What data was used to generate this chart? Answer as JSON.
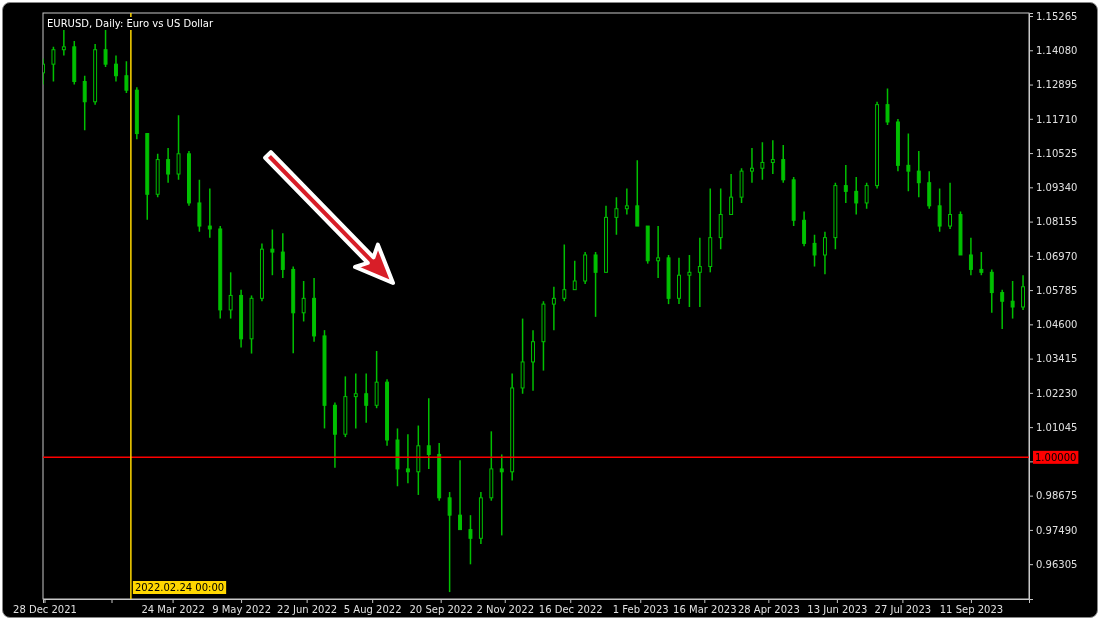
{
  "chart_data": {
    "type": "candlestick",
    "title": "EURUSD, Daily:  Euro vs US Dollar",
    "color": "#00c000",
    "xlim": [
      "2021-12-27",
      "2023-10-20"
    ],
    "xticks": [
      {
        "value": "2021-12-28",
        "label": "28 Dec 2021"
      },
      {
        "value": "2022-02-11",
        "label": null
      },
      {
        "value": "2022-03-24",
        "label": "24 Mar 2022"
      },
      {
        "value": "2022-05-09",
        "label": "9 May 2022"
      },
      {
        "value": "2022-06-22",
        "label": "22 Jun 2022"
      },
      {
        "value": "2022-08-05",
        "label": "5 Aug 2022"
      },
      {
        "value": "2022-09-20",
        "label": "20 Sep 2022"
      },
      {
        "value": "2022-11-02",
        "label": "2 Nov 2022"
      },
      {
        "value": "2022-12-16",
        "label": "16 Dec 2022"
      },
      {
        "value": "2023-02-01",
        "label": "1 Feb 2023"
      },
      {
        "value": "2023-03-16",
        "label": "16 Mar 2023"
      },
      {
        "value": "2023-04-28",
        "label": "28 Apr 2023"
      },
      {
        "value": "2023-06-13",
        "label": "13 Jun 2023"
      },
      {
        "value": "2023-07-27",
        "label": "27 Jul 2023"
      },
      {
        "value": "2023-09-11",
        "label": "11 Sep 2023"
      }
    ],
    "ylim": [
      0.951,
      1.1537
    ],
    "yticks": [
      {
        "value": 1.15265,
        "label": "1.15265"
      },
      {
        "value": 1.1408,
        "label": "1.14080"
      },
      {
        "value": 1.12895,
        "label": "1.12895"
      },
      {
        "value": 1.1171,
        "label": "1.11710"
      },
      {
        "value": 1.10525,
        "label": "1.10525"
      },
      {
        "value": 1.0934,
        "label": "1.09340"
      },
      {
        "value": 1.08155,
        "label": "1.08155"
      },
      {
        "value": 1.0697,
        "label": "1.06970"
      },
      {
        "value": 1.05785,
        "label": "1.05785"
      },
      {
        "value": 1.046,
        "label": "1.04600"
      },
      {
        "value": 1.03415,
        "label": "1.03415"
      },
      {
        "value": 1.0223,
        "label": "1.02230"
      },
      {
        "value": 1.01045,
        "label": "1.01045"
      },
      {
        "value": 0.9986,
        "label": null
      },
      {
        "value": 0.98675,
        "label": "0.98675"
      },
      {
        "value": 0.9749,
        "label": "0.97490"
      },
      {
        "value": 0.96305,
        "label": "0.96305"
      }
    ],
    "ref_lines": [
      {
        "axis": "y",
        "value": 1.0,
        "label": "1.00000",
        "color": "#ff0000"
      },
      {
        "axis": "x",
        "value": "2022-02-24",
        "label": "2022.02.24 00:00",
        "color": "#ffd700"
      }
    ],
    "x": [
      "2021-12-27",
      "2022-01-03",
      "2022-01-10",
      "2022-01-17",
      "2022-01-24",
      "2022-01-31",
      "2022-02-07",
      "2022-02-14",
      "2022-02-21",
      "2022-02-28",
      "2022-03-07",
      "2022-03-14",
      "2022-03-21",
      "2022-03-28",
      "2022-04-04",
      "2022-04-11",
      "2022-04-18",
      "2022-04-25",
      "2022-05-02",
      "2022-05-09",
      "2022-05-16",
      "2022-05-23",
      "2022-05-30",
      "2022-06-06",
      "2022-06-13",
      "2022-06-20",
      "2022-06-27",
      "2022-07-04",
      "2022-07-11",
      "2022-07-18",
      "2022-07-25",
      "2022-08-01",
      "2022-08-08",
      "2022-08-15",
      "2022-08-22",
      "2022-08-29",
      "2022-09-05",
      "2022-09-12",
      "2022-09-19",
      "2022-09-26",
      "2022-10-03",
      "2022-10-10",
      "2022-10-17",
      "2022-10-24",
      "2022-10-31",
      "2022-11-07",
      "2022-11-14",
      "2022-11-21",
      "2022-11-28",
      "2022-12-05",
      "2022-12-12",
      "2022-12-19",
      "2022-12-26",
      "2023-01-02",
      "2023-01-09",
      "2023-01-16",
      "2023-01-23",
      "2023-01-30",
      "2023-02-06",
      "2023-02-13",
      "2023-02-20",
      "2023-02-27",
      "2023-03-06",
      "2023-03-13",
      "2023-03-20",
      "2023-03-27",
      "2023-04-03",
      "2023-04-10",
      "2023-04-17",
      "2023-04-24",
      "2023-05-01",
      "2023-05-08",
      "2023-05-15",
      "2023-05-22",
      "2023-05-29",
      "2023-06-05",
      "2023-06-12",
      "2023-06-19",
      "2023-06-26",
      "2023-07-03",
      "2023-07-10",
      "2023-07-17",
      "2023-07-24",
      "2023-07-31",
      "2023-08-07",
      "2023-08-14",
      "2023-08-21",
      "2023-08-28",
      "2023-09-04",
      "2023-09-11",
      "2023-09-18",
      "2023-09-25",
      "2023-10-02",
      "2023-10-09",
      "2023-10-16"
    ],
    "ohlc": [
      [
        1.133,
        1.138,
        1.129,
        1.136
      ],
      [
        1.136,
        1.142,
        1.13,
        1.141
      ],
      [
        1.141,
        1.1482,
        1.139,
        1.142
      ],
      [
        1.142,
        1.144,
        1.129,
        1.13
      ],
      [
        1.13,
        1.132,
        1.1131,
        1.123
      ],
      [
        1.123,
        1.143,
        1.122,
        1.141
      ],
      [
        1.141,
        1.1485,
        1.135,
        1.136
      ],
      [
        1.136,
        1.139,
        1.13,
        1.132
      ],
      [
        1.132,
        1.137,
        1.126,
        1.127
      ],
      [
        1.127,
        1.128,
        1.11,
        1.112
      ],
      [
        1.112,
        1.112,
        1.0822,
        1.091
      ],
      [
        1.091,
        1.105,
        1.09,
        1.103
      ],
      [
        1.103,
        1.107,
        1.095,
        1.098
      ],
      [
        1.098,
        1.1183,
        1.096,
        1.105
      ],
      [
        1.105,
        1.106,
        1.087,
        1.088
      ],
      [
        1.088,
        1.096,
        1.078,
        1.08
      ],
      [
        1.08,
        1.093,
        1.076,
        1.079
      ],
      [
        1.079,
        1.08,
        1.048,
        1.051
      ],
      [
        1.051,
        1.064,
        1.048,
        1.056
      ],
      [
        1.056,
        1.058,
        1.038,
        1.041
      ],
      [
        1.041,
        1.056,
        1.0359,
        1.055
      ],
      [
        1.055,
        1.074,
        1.054,
        1.072
      ],
      [
        1.072,
        1.0788,
        1.063,
        1.071
      ],
      [
        1.071,
        1.0775,
        1.062,
        1.065
      ],
      [
        1.065,
        1.066,
        1.036,
        1.05
      ],
      [
        1.05,
        1.061,
        1.047,
        1.055
      ],
      [
        1.055,
        1.062,
        1.04,
        1.042
      ],
      [
        1.042,
        1.044,
        1.01,
        1.018
      ],
      [
        1.018,
        1.019,
        0.9964,
        1.008
      ],
      [
        1.008,
        1.028,
        1.007,
        1.021
      ],
      [
        1.021,
        1.029,
        1.01,
        1.022
      ],
      [
        1.022,
        1.029,
        1.012,
        1.018
      ],
      [
        1.018,
        1.0368,
        1.017,
        1.026
      ],
      [
        1.026,
        1.027,
        1.004,
        1.006
      ],
      [
        1.006,
        1.01,
        0.99,
        0.996
      ],
      [
        0.996,
        1.008,
        0.991,
        0.995
      ],
      [
        0.995,
        1.011,
        0.987,
        1.004
      ],
      [
        1.004,
        1.0204,
        0.996,
        1.001
      ],
      [
        1.001,
        1.005,
        0.985,
        0.986
      ],
      [
        0.986,
        0.988,
        0.9534,
        0.98
      ],
      [
        0.98,
        0.999,
        0.975,
        0.975
      ],
      [
        0.975,
        0.98,
        0.963,
        0.972
      ],
      [
        0.972,
        0.988,
        0.97,
        0.986
      ],
      [
        0.986,
        1.009,
        0.985,
        0.996
      ],
      [
        0.996,
        1.001,
        0.973,
        0.995
      ],
      [
        0.995,
        1.029,
        0.992,
        1.024
      ],
      [
        1.024,
        1.048,
        1.022,
        1.033
      ],
      [
        1.033,
        1.044,
        1.023,
        1.04
      ],
      [
        1.04,
        1.054,
        1.03,
        1.053
      ],
      [
        1.053,
        1.059,
        1.044,
        1.055
      ],
      [
        1.055,
        1.0736,
        1.054,
        1.058
      ],
      [
        1.058,
        1.068,
        1.058,
        1.061
      ],
      [
        1.061,
        1.071,
        1.06,
        1.07
      ],
      [
        1.07,
        1.071,
        1.0486,
        1.064
      ],
      [
        1.064,
        1.087,
        1.064,
        1.083
      ],
      [
        1.083,
        1.09,
        1.077,
        1.086
      ],
      [
        1.086,
        1.093,
        1.084,
        1.087
      ],
      [
        1.087,
        1.1028,
        1.08,
        1.08
      ],
      [
        1.08,
        1.08,
        1.067,
        1.068
      ],
      [
        1.068,
        1.08,
        1.062,
        1.069
      ],
      [
        1.069,
        1.07,
        1.053,
        1.055
      ],
      [
        1.055,
        1.069,
        1.053,
        1.063
      ],
      [
        1.063,
        1.07,
        1.052,
        1.064
      ],
      [
        1.064,
        1.076,
        1.052,
        1.066
      ],
      [
        1.066,
        1.093,
        1.064,
        1.076
      ],
      [
        1.076,
        1.093,
        1.072,
        1.084
      ],
      [
        1.084,
        1.098,
        1.084,
        1.09
      ],
      [
        1.09,
        1.1,
        1.088,
        1.099
      ],
      [
        1.099,
        1.107,
        1.095,
        1.1
      ],
      [
        1.1,
        1.109,
        1.096,
        1.102
      ],
      [
        1.102,
        1.1097,
        1.098,
        1.103
      ],
      [
        1.103,
        1.108,
        1.095,
        1.096
      ],
      [
        1.096,
        1.097,
        1.08,
        1.082
      ],
      [
        1.082,
        1.085,
        1.073,
        1.074
      ],
      [
        1.074,
        1.077,
        1.066,
        1.07
      ],
      [
        1.07,
        1.078,
        1.0633,
        1.076
      ],
      [
        1.076,
        1.095,
        1.072,
        1.094
      ],
      [
        1.094,
        1.1011,
        1.088,
        1.092
      ],
      [
        1.092,
        1.097,
        1.084,
        1.088
      ],
      [
        1.088,
        1.095,
        1.086,
        1.094
      ],
      [
        1.094,
        1.123,
        1.093,
        1.122
      ],
      [
        1.122,
        1.1276,
        1.115,
        1.116
      ],
      [
        1.116,
        1.117,
        1.099,
        1.101
      ],
      [
        1.101,
        1.112,
        1.092,
        1.099
      ],
      [
        1.099,
        1.106,
        1.09,
        1.095
      ],
      [
        1.095,
        1.099,
        1.086,
        1.087
      ],
      [
        1.087,
        1.093,
        1.078,
        1.08
      ],
      [
        1.08,
        1.095,
        1.079,
        1.084
      ],
      [
        1.084,
        1.085,
        1.07,
        1.07
      ],
      [
        1.07,
        1.076,
        1.063,
        1.065
      ],
      [
        1.065,
        1.071,
        1.063,
        1.064
      ],
      [
        1.064,
        1.065,
        1.05,
        1.057
      ],
      [
        1.057,
        1.058,
        1.0444,
        1.054
      ],
      [
        1.054,
        1.061,
        1.048,
        1.052
      ],
      [
        1.052,
        1.063,
        1.051,
        1.059
      ]
    ]
  }
}
